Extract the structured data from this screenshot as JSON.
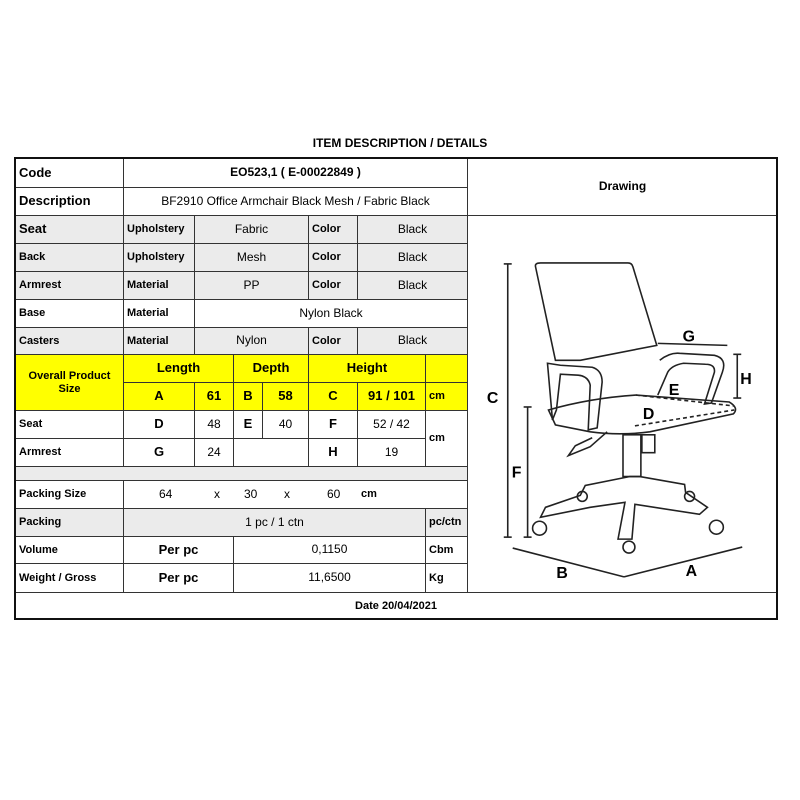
{
  "title": "ITEM DESCRIPTION / DETAILS",
  "code": {
    "label": "Code",
    "value": "EO523,1 ( E-00022849 )"
  },
  "description": {
    "label": "Description",
    "value": "BF2910 Office Armchair Black Mesh / Fabric Black"
  },
  "drawing_label": "Drawing",
  "parts": [
    {
      "label": "Seat",
      "attr": "Upholstery",
      "value": "Fabric",
      "color_label": "Color",
      "color": "Black"
    },
    {
      "label": "Back",
      "attr": "Upholstery",
      "value": "Mesh",
      "color_label": "Color",
      "color": "Black"
    },
    {
      "label": "Armrest",
      "attr": "Material",
      "value": "PP",
      "color_label": "Color",
      "color": "Black"
    },
    {
      "label": "Base",
      "attr": "Material",
      "value": "Nylon Black"
    },
    {
      "label": "Casters",
      "attr": "Material",
      "value": "Nylon",
      "color_label": "Color",
      "color": "Black"
    }
  ],
  "overall": {
    "label": "Overall Product Size",
    "length": "Length",
    "depth": "Depth",
    "height": "Height",
    "a": "A",
    "a_val": "61",
    "b": "B",
    "b_val": "58",
    "c": "C",
    "c_val": "91 / 101",
    "unit": "cm"
  },
  "seat_dims": {
    "label": "Seat",
    "d": "D",
    "d_val": "48",
    "e": "E",
    "e_val": "40",
    "f": "F",
    "f_val": "52 / 42"
  },
  "armrest_dims": {
    "label": "Armrest",
    "g": "G",
    "g_val": "24",
    "h": "H",
    "h_val": "19"
  },
  "dims_unit": "cm",
  "packing_size": {
    "label": "Packing Size",
    "l": "64",
    "x1": "x",
    "w": "30",
    "x2": "x",
    "h": "60",
    "unit": "cm"
  },
  "packing": {
    "label": "Packing",
    "value": "1 pc / 1 ctn",
    "unit": "pc/ctn"
  },
  "volume": {
    "label": "Volume",
    "per": "Per pc",
    "value": "0,1150",
    "unit": "Cbm"
  },
  "weight": {
    "label": "Weight / Gross",
    "per": "Per pc",
    "value": "11,6500",
    "unit": "Kg"
  },
  "date": "Date 20/04/2021",
  "drawing_letters": {
    "a": "A",
    "b": "B",
    "c": "C",
    "d": "D",
    "e": "E",
    "f": "F",
    "g": "G",
    "h": "H"
  },
  "colors": {
    "highlight": "#ffff00",
    "row_gray": "#ebebeb"
  }
}
